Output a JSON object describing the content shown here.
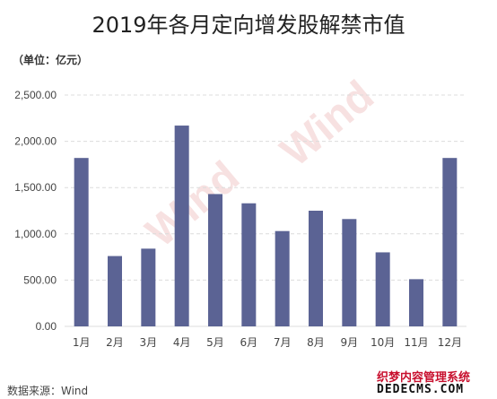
{
  "title": "2019年各月定向增发股解禁市值",
  "unit_label": "（单位：亿元）",
  "source": "数据来源：Wind",
  "watermark_center": "Wind",
  "watermark_corner": {
    "cn": "织梦内容管理系统",
    "en": "DEDECMS.COM"
  },
  "colors": {
    "bar": "#5b6394",
    "grid": "#dcdcdc",
    "watermark": "#f0c8c8"
  },
  "chart_data": {
    "type": "bar",
    "title": "2019年各月定向增发股解禁市值",
    "categories": [
      "1月",
      "2月",
      "3月",
      "4月",
      "5月",
      "6月",
      "7月",
      "8月",
      "9月",
      "10月",
      "11月",
      "12月"
    ],
    "values": [
      1820,
      760,
      840,
      2170,
      1430,
      1330,
      1030,
      1250,
      1160,
      800,
      510,
      1820
    ],
    "ylim": [
      0,
      2500
    ],
    "yticks": [
      0,
      500,
      1000,
      1500,
      2000,
      2500
    ],
    "ytick_labels": [
      "0.00",
      "500.00",
      "1,000.00",
      "1,500.00",
      "2,000.00",
      "2,500.00"
    ],
    "xlabel": "",
    "ylabel": "",
    "grid": true
  }
}
